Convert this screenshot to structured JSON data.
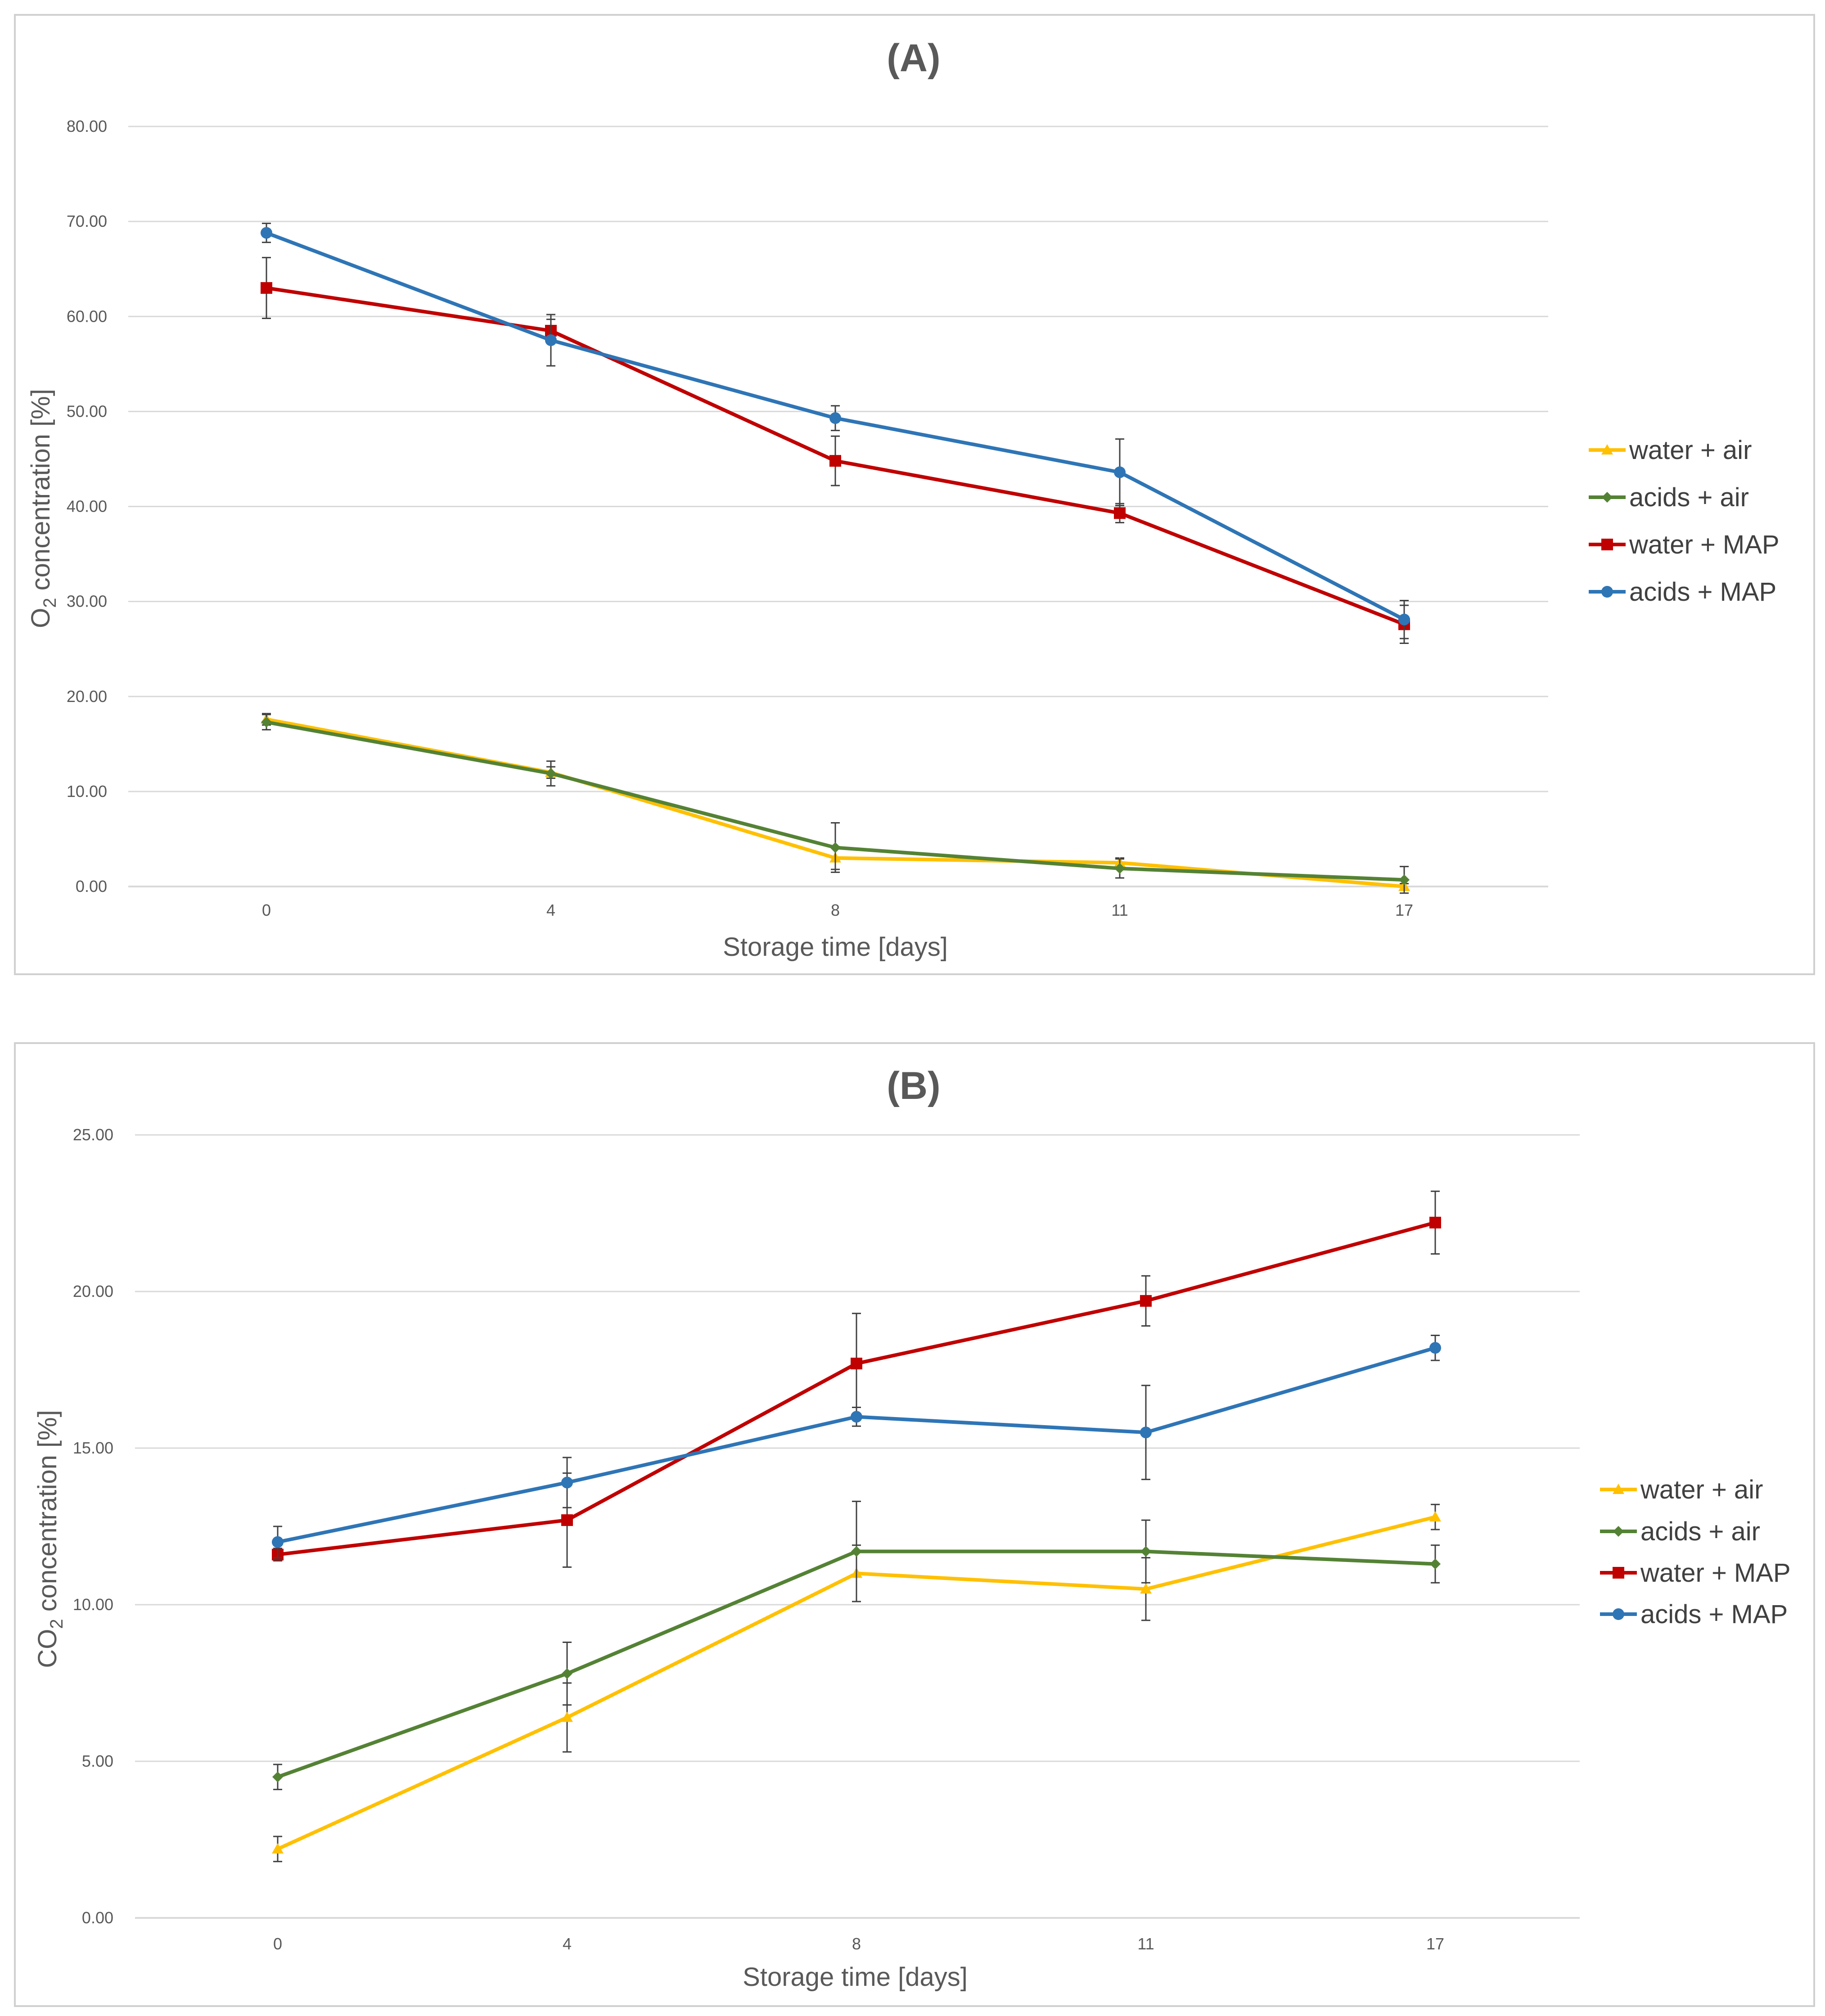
{
  "chart_data": [
    {
      "type": "line",
      "id": "A",
      "title": "(A)",
      "xlabel": "Storage time [days]",
      "ylabel_main": "O",
      "ylabel_sub": "2",
      "ylabel_rest": " concentration [%]",
      "categories": [
        "0",
        "4",
        "8",
        "11",
        "17"
      ],
      "y_ticks": [
        "0.00",
        "10.00",
        "20.00",
        "30.00",
        "40.00",
        "50.00",
        "60.00",
        "70.00",
        "80.00"
      ],
      "ylim": [
        0,
        80
      ],
      "series": [
        {
          "name": "water + air",
          "color": "#ffc000",
          "marker": "triangle",
          "values": [
            17.6,
            12.0,
            3.0,
            2.5,
            0.0
          ],
          "errors": [
            0.6,
            0.6,
            1.2,
            0.5,
            0.3
          ]
        },
        {
          "name": "acids + air",
          "color": "#548235",
          "marker": "diamond",
          "values": [
            17.3,
            11.9,
            4.1,
            1.9,
            0.7
          ],
          "errors": [
            0.8,
            1.3,
            2.6,
            1.0,
            1.4
          ]
        },
        {
          "name": "water + MAP",
          "color": "#c00000",
          "marker": "square",
          "values": [
            63.0,
            58.5,
            44.8,
            39.3,
            27.6
          ],
          "errors": [
            3.2,
            1.2,
            2.6,
            1.0,
            2.0
          ]
        },
        {
          "name": "acids + MAP",
          "color": "#2e75b6",
          "marker": "circle",
          "values": [
            68.8,
            57.5,
            49.3,
            43.6,
            28.1
          ],
          "errors": [
            1.0,
            2.7,
            1.3,
            3.5,
            2.0
          ]
        }
      ]
    },
    {
      "type": "line",
      "id": "B",
      "title": "(B)",
      "xlabel": "Storage time [days]",
      "ylabel_main": "CO",
      "ylabel_sub": "2",
      "ylabel_rest": " concentration [%]",
      "categories": [
        "0",
        "4",
        "8",
        "11",
        "17"
      ],
      "y_ticks": [
        "0.00",
        "5.00",
        "10.00",
        "15.00",
        "20.00",
        "25.00"
      ],
      "ylim": [
        0,
        25
      ],
      "series": [
        {
          "name": "water + air",
          "color": "#ffc000",
          "marker": "triangle",
          "values": [
            2.2,
            6.4,
            11.0,
            10.5,
            12.8
          ],
          "errors": [
            0.4,
            1.1,
            0.9,
            1.0,
            0.4
          ]
        },
        {
          "name": "acids + air",
          "color": "#548235",
          "marker": "diamond",
          "values": [
            4.5,
            7.8,
            11.7,
            11.7,
            11.3
          ],
          "errors": [
            0.4,
            1.0,
            1.6,
            1.0,
            0.6
          ]
        },
        {
          "name": "water + MAP",
          "color": "#c00000",
          "marker": "square",
          "values": [
            11.6,
            12.7,
            17.7,
            19.7,
            22.2
          ],
          "errors": [
            0.2,
            1.5,
            1.6,
            0.8,
            1.0
          ]
        },
        {
          "name": "acids + MAP",
          "color": "#2e75b6",
          "marker": "circle",
          "values": [
            12.0,
            13.9,
            16.0,
            15.5,
            18.2
          ],
          "errors": [
            0.5,
            0.8,
            0.3,
            1.5,
            0.4
          ]
        }
      ]
    }
  ]
}
